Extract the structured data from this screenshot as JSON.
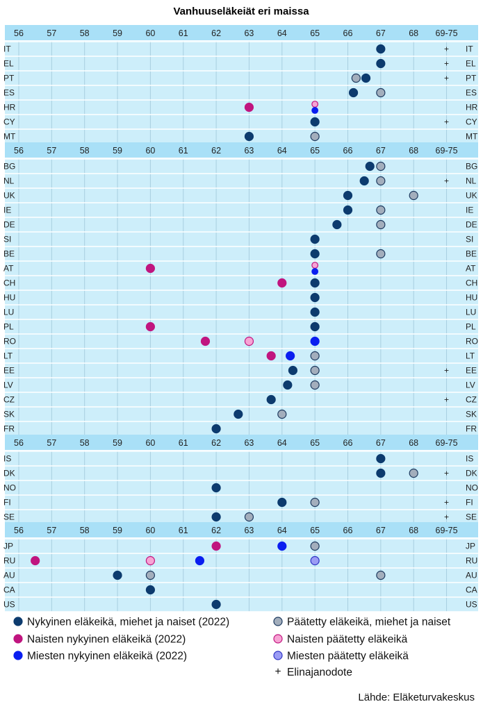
{
  "chart_data": {
    "type": "scatter",
    "title": "Vanhuuseläkeiät eri maissa",
    "source": "Lähde: Eläketurvakeskus",
    "x_ticks": [
      "56",
      "57",
      "58",
      "59",
      "60",
      "61",
      "62",
      "63",
      "64",
      "65",
      "66",
      "67",
      "68",
      "69-75"
    ],
    "xlim": [
      56,
      69
    ],
    "life_expectancy_marker": "+",
    "series": [
      {
        "key": "current",
        "name": "Nykyinen eläkeikä, miehet ja naiset (2022)",
        "color": "#0d3b6e",
        "stroke": "#0d3b6e"
      },
      {
        "key": "women_current",
        "name": "Naisten nykyinen eläkeikä (2022)",
        "color": "#c0157f",
        "stroke": "#c0157f"
      },
      {
        "key": "men_current",
        "name": "Miesten nykyinen eläkeikä (2022)",
        "color": "#0a1ef0",
        "stroke": "#0a1ef0"
      },
      {
        "key": "decided",
        "name": "Päätetty eläkeikä, miehet ja naiset",
        "color": "#a3aebc",
        "stroke": "#1d3a5f"
      },
      {
        "key": "women_decided",
        "name": "Naisten päätetty eläkeikä",
        "color": "#f7a3d4",
        "stroke": "#c0157f"
      },
      {
        "key": "men_decided",
        "name": "Miesten päätetty eläkeikä",
        "color": "#9b9cf4",
        "stroke": "#2e33c4"
      }
    ],
    "legend_extra": "Elinajanodote",
    "groups": [
      {
        "countries": [
          {
            "code": "IT",
            "current": 67,
            "plus": true
          },
          {
            "code": "EL",
            "current": 67,
            "plus": true
          },
          {
            "code": "PT",
            "current": 66.55,
            "decided": 66.25,
            "plus": true
          },
          {
            "code": "ES",
            "current": 66.17,
            "decided": 67
          },
          {
            "code": "HR",
            "women_current": 63,
            "women_decided": 65,
            "men_current": 65
          },
          {
            "code": "CY",
            "current": 65,
            "plus": true
          },
          {
            "code": "MT",
            "current": 63,
            "decided": 65
          }
        ]
      },
      {
        "countries": [
          {
            "code": "BG",
            "current": 66.67,
            "decided": 67
          },
          {
            "code": "NL",
            "current": 66.5,
            "decided": 67,
            "plus": true
          },
          {
            "code": "UK",
            "current": 66,
            "decided": 68
          },
          {
            "code": "IE",
            "current": 66,
            "decided": 67
          },
          {
            "code": "DE",
            "current": 65.67,
            "decided": 67
          },
          {
            "code": "SI",
            "current": 65
          },
          {
            "code": "BE",
            "current": 65,
            "decided": 67
          },
          {
            "code": "AT",
            "women_current": 60,
            "women_decided": 65,
            "men_current": 65
          },
          {
            "code": "CH",
            "women_current": 64,
            "current": 65
          },
          {
            "code": "HU",
            "current": 65
          },
          {
            "code": "LU",
            "current": 65
          },
          {
            "code": "PL",
            "women_current": 60,
            "current": 65
          },
          {
            "code": "RO",
            "women_current": 61.67,
            "women_decided": 63,
            "men_current": 65
          },
          {
            "code": "LT",
            "women_current": 63.67,
            "men_current": 64.25,
            "decided": 65
          },
          {
            "code": "EE",
            "current": 64.33,
            "decided": 65,
            "plus": true
          },
          {
            "code": "LV",
            "current": 64.17,
            "decided": 65
          },
          {
            "code": "CZ",
            "current": 63.67,
            "plus": true
          },
          {
            "code": "SK",
            "current": 62.67,
            "decided": 64
          },
          {
            "code": "FR",
            "current": 62
          }
        ]
      },
      {
        "countries": [
          {
            "code": "IS",
            "current": 67
          },
          {
            "code": "DK",
            "current": 67,
            "decided": 68,
            "plus": true
          },
          {
            "code": "NO",
            "current": 62
          },
          {
            "code": "FI",
            "current": 64,
            "decided": 65,
            "plus": true
          },
          {
            "code": "SE",
            "current": 62,
            "decided": 63,
            "plus": true
          }
        ]
      },
      {
        "countries": [
          {
            "code": "JP",
            "women_current": 62,
            "men_current": 64,
            "decided": 65
          },
          {
            "code": "RU",
            "women_current": 56.5,
            "women_decided": 60,
            "men_current": 61.5,
            "men_decided": 65
          },
          {
            "code": "AU",
            "current": 59,
            "decided": 60,
            "decided2": 67
          },
          {
            "code": "CA",
            "current": 60
          },
          {
            "code": "US",
            "current": 62
          }
        ]
      }
    ]
  }
}
